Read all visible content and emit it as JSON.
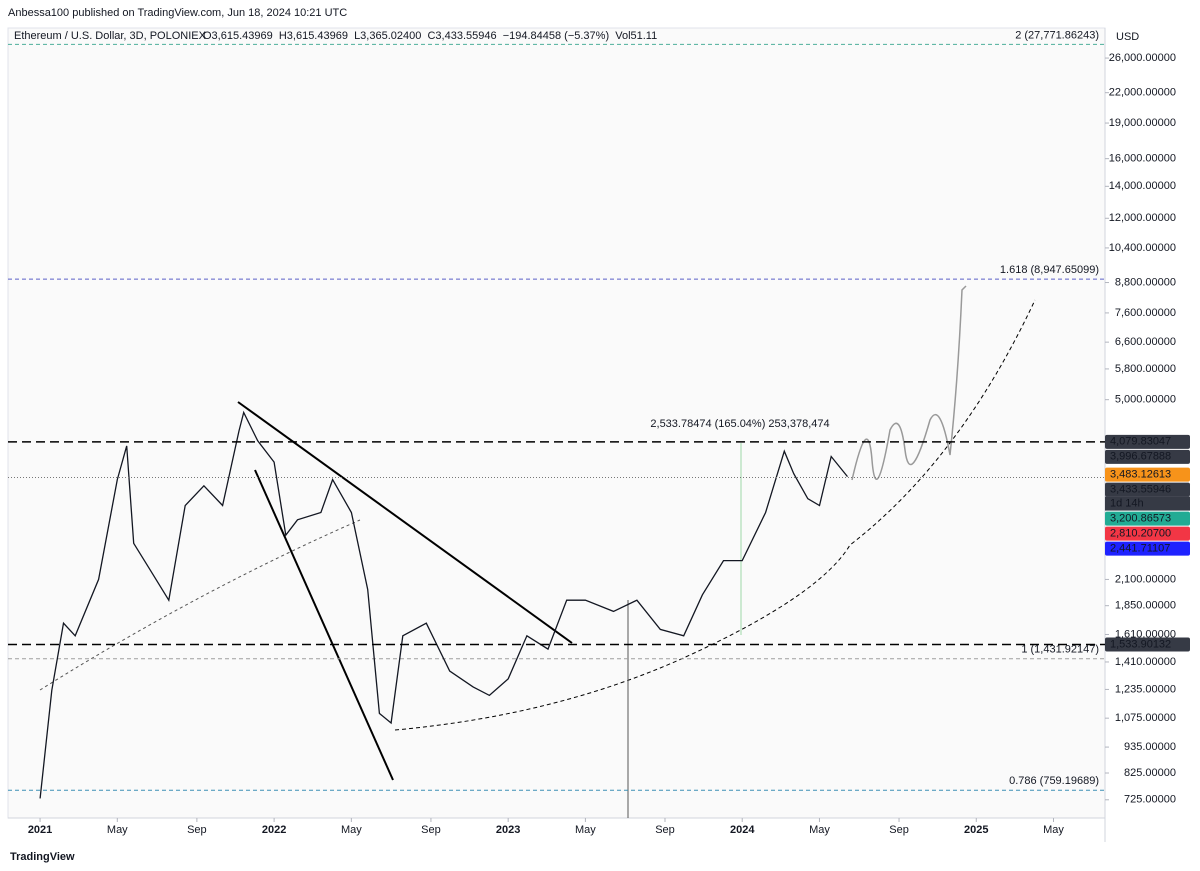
{
  "attribution": "Anbessa100 published on TradingView.com, Jun 18, 2024 10:21 UTC",
  "footer": "TradingView",
  "chart_data": {
    "type": "line",
    "title": "Ethereum / U.S. Dollar, 3D, POLONIEX",
    "ohlc": "O3,615.43969  H3,615.43969  L3,365.02400  C3,433.55946  −194.84458 (−5.37%)  Vol51.11",
    "currency": "USD",
    "log_scale": true,
    "color": "#131722",
    "x": [
      2021.0,
      2021.05,
      2021.1,
      2021.15,
      2021.25,
      2021.33,
      2021.37,
      2021.4,
      2021.47,
      2021.55,
      2021.62,
      2021.7,
      2021.78,
      2021.85,
      2021.87,
      2021.93,
      2022.0,
      2022.05,
      2022.1,
      2022.2,
      2022.25,
      2022.33,
      2022.4,
      2022.45,
      2022.5,
      2022.55,
      2022.65,
      2022.75,
      2022.85,
      2022.92,
      2023.0,
      2023.08,
      2023.17,
      2023.25,
      2023.33,
      2023.45,
      2023.55,
      2023.65,
      2023.75,
      2023.83,
      2023.92,
      2024.0,
      2024.1,
      2024.18,
      2024.22,
      2024.28,
      2024.33,
      2024.38,
      2024.45
    ],
    "values": [
      730,
      1230,
      1700,
      1600,
      2100,
      3400,
      4000,
      2500,
      2200,
      1900,
      3000,
      3300,
      3000,
      4300,
      4700,
      4100,
      3700,
      2600,
      2800,
      2900,
      3400,
      2900,
      2000,
      1100,
      1050,
      1600,
      1700,
      1350,
      1250,
      1200,
      1300,
      1600,
      1500,
      1900,
      1900,
      1800,
      1900,
      1650,
      1600,
      1950,
      2300,
      2300,
      2900,
      3900,
      3500,
      3100,
      3000,
      3800,
      3450
    ],
    "xlim": [
      2020.863,
      2025.55
    ],
    "xticks": [
      {
        "value": 2021.0,
        "label": "2021"
      },
      {
        "value": 2021.33,
        "label": "May"
      },
      {
        "value": 2021.67,
        "label": "Sep"
      },
      {
        "value": 2022.0,
        "label": "2022"
      },
      {
        "value": 2022.33,
        "label": "May"
      },
      {
        "value": 2022.67,
        "label": "Sep"
      },
      {
        "value": 2023.0,
        "label": "2023"
      },
      {
        "value": 2023.33,
        "label": "May"
      },
      {
        "value": 2023.67,
        "label": "Sep"
      },
      {
        "value": 2024.0,
        "label": "2024"
      },
      {
        "value": 2024.33,
        "label": "May"
      },
      {
        "value": 2024.67,
        "label": "Sep"
      },
      {
        "value": 2025.0,
        "label": "2025"
      },
      {
        "value": 2025.33,
        "label": "May"
      }
    ],
    "ylim": [
      664,
      30060
    ],
    "yticks": [
      {
        "value": 26000,
        "label": "26,000.00000"
      },
      {
        "value": 22000,
        "label": "22,000.00000"
      },
      {
        "value": 19000,
        "label": "19,000.00000"
      },
      {
        "value": 16000,
        "label": "16,000.00000"
      },
      {
        "value": 14000,
        "label": "14,000.00000"
      },
      {
        "value": 12000,
        "label": "12,000.00000"
      },
      {
        "value": 10400,
        "label": "10,400.00000"
      },
      {
        "value": 8800,
        "label": "8,800.00000"
      },
      {
        "value": 7600,
        "label": "7,600.00000"
      },
      {
        "value": 6600,
        "label": "6,600.00000"
      },
      {
        "value": 5800,
        "label": "5,800.00000"
      },
      {
        "value": 5000,
        "label": "5,000.00000"
      },
      {
        "value": 2100,
        "label": "2,100.00000"
      },
      {
        "value": 1850,
        "label": "1,850.00000"
      },
      {
        "value": 1610,
        "label": "1,610.00000"
      },
      {
        "value": 1410,
        "label": "1,410.00000"
      },
      {
        "value": 1235,
        "label": "1,235.00000"
      },
      {
        "value": 1075,
        "label": "1,075.00000"
      },
      {
        "value": 935,
        "label": "935.00000"
      },
      {
        "value": 825,
        "label": "825.00000"
      },
      {
        "value": 725,
        "label": "725.00000"
      }
    ],
    "fib_levels": [
      {
        "value": 27771.86243,
        "label": "2 (27,771.86243)",
        "color": "#4caf9a"
      },
      {
        "value": 8947.65099,
        "label": "1.618 (8,947.65099)",
        "color": "#5b5fc7"
      },
      {
        "value": 1431.92147,
        "label": "1 (1,431.92147)",
        "color": "#9e9e9e"
      },
      {
        "value": 759.19689,
        "label": "0.786 (759.19689)",
        "color": "#3d8fb5"
      }
    ],
    "price_tags": [
      {
        "value": 4079.83047,
        "label": "4,079.83047",
        "color": "#363a45",
        "dashed": true
      },
      {
        "value": 3996.67888,
        "label": "3,996.67888",
        "color": "#363a45"
      },
      {
        "value": 3483.12613,
        "label": "3,483.12613",
        "color": "#f7931a"
      },
      {
        "value": 3433.55946,
        "label": "3,433.55946",
        "color": "#363a45",
        "dotted": true
      },
      {
        "value": 3200.86573,
        "label": "3,200.86573",
        "color": "#22ab94"
      },
      {
        "value": 2810.207,
        "label": "2,810.20700",
        "color": "#f23645"
      },
      {
        "value": 2441.71107,
        "label": "2,441.71107",
        "color": "#1e22ff"
      },
      {
        "value": 1533.90132,
        "label": "1,533.90132",
        "color": "#363a45",
        "dashed": true
      }
    ],
    "countdown": "1d 14h",
    "measure_label": "2,533.78474 (165.04%) 253,378,474"
  }
}
